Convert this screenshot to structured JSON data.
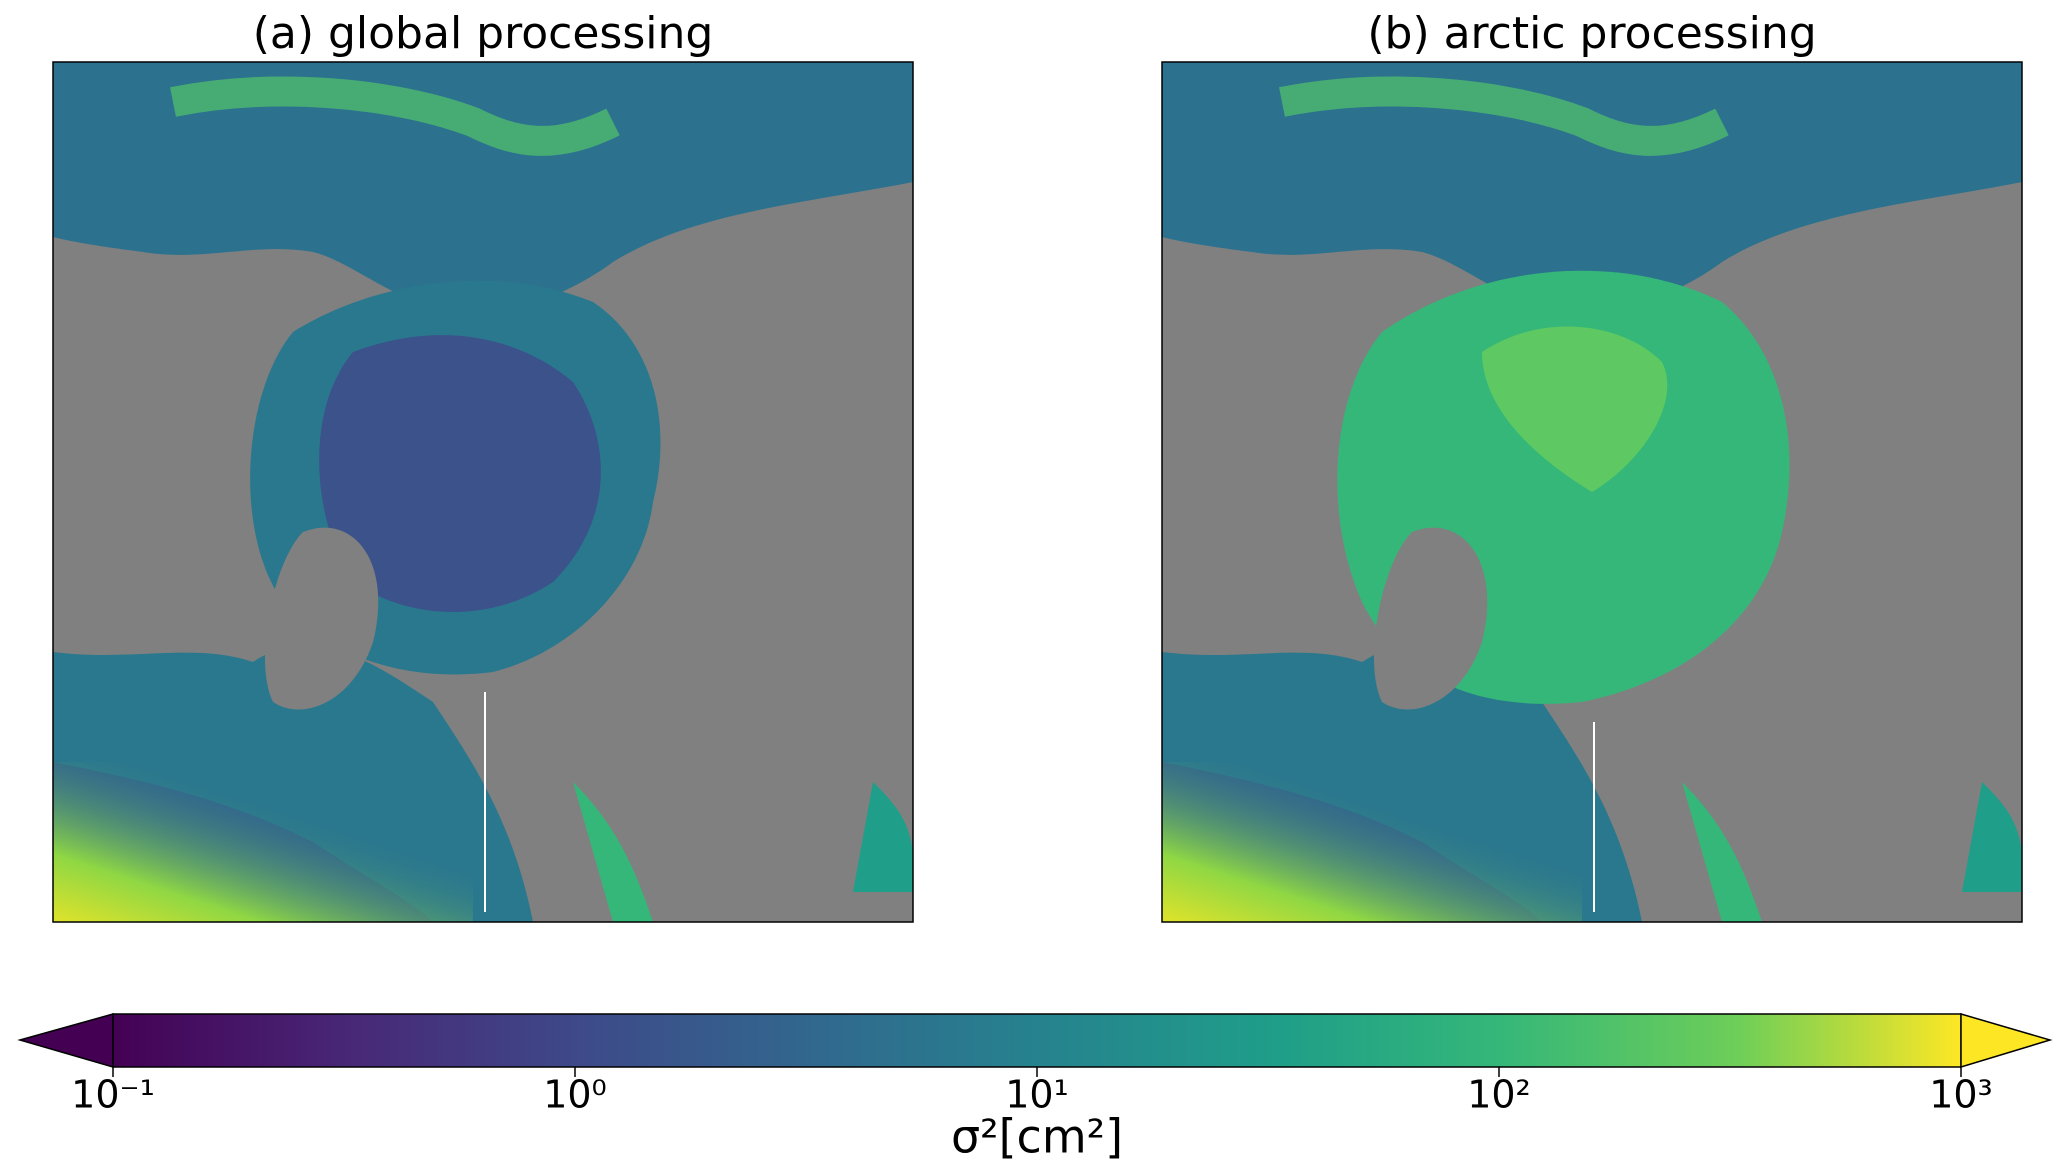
{
  "panels": [
    {
      "title": "(a) global processing"
    },
    {
      "title": "(b) arctic processing"
    }
  ],
  "colorbar": {
    "label": "σ²[cm²]",
    "scale": "log",
    "colormap": "viridis",
    "extend": "both",
    "lim": [
      0.1,
      1000
    ],
    "ticks": [
      {
        "value": 0.1,
        "label": "10⁻¹"
      },
      {
        "value": 1,
        "label": "10⁰"
      },
      {
        "value": 10,
        "label": "10¹"
      },
      {
        "value": 100,
        "label": "10²"
      },
      {
        "value": 1000,
        "label": "10³"
      }
    ]
  }
}
